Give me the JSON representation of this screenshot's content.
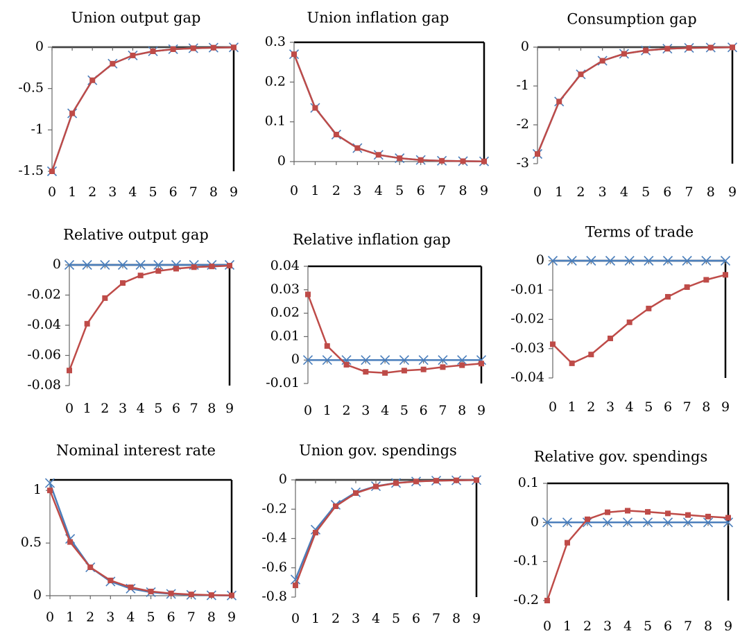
{
  "chart_data": [
    {
      "type": "line",
      "title": "Union output gap",
      "x": [
        0,
        1,
        2,
        3,
        4,
        5,
        6,
        7,
        8,
        9
      ],
      "ylim": [
        -1.5,
        0
      ],
      "yticks": [
        0,
        -0.5,
        -1,
        -1.5
      ],
      "ytick_labels": [
        "0",
        "-0.5",
        "-1",
        "-1.5"
      ],
      "series": [
        {
          "values": [
            -1.5,
            -0.8,
            -0.4,
            -0.2,
            -0.1,
            -0.05,
            -0.025,
            -0.013,
            -0.006,
            -0.003
          ]
        },
        {
          "values": [
            -1.5,
            -0.8,
            -0.4,
            -0.2,
            -0.1,
            -0.05,
            -0.025,
            -0.013,
            -0.006,
            -0.003
          ]
        }
      ]
    },
    {
      "type": "line",
      "title": "Union inflation gap",
      "x": [
        0,
        1,
        2,
        3,
        4,
        5,
        6,
        7,
        8,
        9
      ],
      "ylim": [
        0,
        0.3
      ],
      "yticks": [
        0.3,
        0.2,
        0.1,
        0
      ],
      "ytick_labels": [
        "0.3",
        "0.2",
        "0.1",
        "0"
      ],
      "series": [
        {
          "values": [
            0.27,
            0.135,
            0.068,
            0.034,
            0.017,
            0.0085,
            0.004,
            0.002,
            0.001,
            0.0005
          ]
        },
        {
          "values": [
            0.27,
            0.135,
            0.068,
            0.034,
            0.017,
            0.0085,
            0.004,
            0.002,
            0.001,
            0.0005
          ]
        }
      ]
    },
    {
      "type": "line",
      "title": "Consumption gap",
      "x": [
        0,
        1,
        2,
        3,
        4,
        5,
        6,
        7,
        8,
        9
      ],
      "ylim": [
        -3,
        0
      ],
      "yticks": [
        0,
        -1,
        -2,
        -3
      ],
      "ytick_labels": [
        "0",
        "-1",
        "-2",
        "-3"
      ],
      "series": [
        {
          "values": [
            -2.75,
            -1.4,
            -0.7,
            -0.35,
            -0.17,
            -0.085,
            -0.04,
            -0.02,
            -0.01,
            -0.005
          ]
        },
        {
          "values": [
            -2.75,
            -1.4,
            -0.7,
            -0.35,
            -0.17,
            -0.085,
            -0.04,
            -0.02,
            -0.01,
            -0.005
          ]
        }
      ]
    },
    {
      "type": "line",
      "title": "Relative output gap",
      "x": [
        0,
        1,
        2,
        3,
        4,
        5,
        6,
        7,
        8,
        9
      ],
      "ylim": [
        -0.08,
        0
      ],
      "yticks": [
        0,
        -0.02,
        -0.04,
        -0.06,
        -0.08
      ],
      "ytick_labels": [
        "0",
        "-0.02",
        "-0.04",
        "-0.06",
        "-0.08"
      ],
      "series": [
        {
          "values": [
            0,
            0,
            0,
            0,
            0,
            0,
            0,
            0,
            0,
            0
          ]
        },
        {
          "values": [
            -0.07,
            -0.039,
            -0.022,
            -0.012,
            -0.007,
            -0.004,
            -0.0025,
            -0.0015,
            -0.001,
            -0.0005
          ]
        }
      ]
    },
    {
      "type": "line",
      "title": "Relative inflation gap",
      "x": [
        0,
        1,
        2,
        3,
        4,
        5,
        6,
        7,
        8,
        9
      ],
      "ylim": [
        -0.01,
        0.04
      ],
      "yticks": [
        0.04,
        0.03,
        0.02,
        0.01,
        0,
        -0.01
      ],
      "ytick_labels": [
        "0.04",
        "0.03",
        "0.02",
        "0.01",
        "0",
        "-0.01"
      ],
      "series": [
        {
          "values": [
            0,
            0,
            0,
            0,
            0,
            0,
            0,
            0,
            0,
            0
          ]
        },
        {
          "values": [
            0.028,
            0.006,
            -0.002,
            -0.005,
            -0.0055,
            -0.0045,
            -0.004,
            -0.003,
            -0.0022,
            -0.0015
          ]
        }
      ]
    },
    {
      "type": "line",
      "title": "Terms of trade",
      "x": [
        0,
        1,
        2,
        3,
        4,
        5,
        6,
        7,
        8,
        9
      ],
      "ylim": [
        -0.04,
        0
      ],
      "yticks": [
        0,
        -0.01,
        -0.02,
        -0.03,
        -0.04
      ],
      "ytick_labels": [
        "0",
        "-0.01",
        "-0.02",
        "-0.03",
        "-0.04"
      ],
      "series": [
        {
          "values": [
            0,
            0,
            0,
            0,
            0,
            0,
            0,
            0,
            0,
            0
          ]
        },
        {
          "values": [
            -0.0285,
            -0.035,
            -0.032,
            -0.0265,
            -0.021,
            -0.0163,
            -0.0123,
            -0.009,
            -0.0065,
            -0.0048
          ]
        }
      ]
    },
    {
      "type": "line",
      "title": "Nominal interest rate",
      "x": [
        0,
        1,
        2,
        3,
        4,
        5,
        6,
        7,
        8,
        9
      ],
      "ylim": [
        0,
        1.1
      ],
      "yticks": [
        1,
        0.5,
        0
      ],
      "ytick_labels": [
        "1",
        "0.5",
        "0"
      ],
      "series": [
        {
          "values": [
            1.07,
            0.54,
            0.27,
            0.135,
            0.067,
            0.033,
            0.017,
            0.008,
            0.004,
            0.002
          ]
        },
        {
          "values": [
            1.0,
            0.51,
            0.27,
            0.145,
            0.08,
            0.04,
            0.022,
            0.012,
            0.006,
            0.003
          ]
        }
      ]
    },
    {
      "type": "line",
      "title": "Union gov. spendings",
      "x": [
        0,
        1,
        2,
        3,
        4,
        5,
        6,
        7,
        8,
        9
      ],
      "ylim": [
        -0.8,
        0
      ],
      "yticks": [
        0,
        -0.2,
        -0.4,
        -0.6,
        -0.8
      ],
      "ytick_labels": [
        "0",
        "-0.2",
        "-0.4",
        "-0.6",
        "-0.8"
      ],
      "series": [
        {
          "values": [
            -0.68,
            -0.34,
            -0.17,
            -0.085,
            -0.043,
            -0.021,
            -0.011,
            -0.005,
            -0.003,
            -0.0013
          ]
        },
        {
          "values": [
            -0.72,
            -0.36,
            -0.18,
            -0.09,
            -0.045,
            -0.022,
            -0.011,
            -0.0055,
            -0.003,
            -0.0014
          ]
        }
      ]
    },
    {
      "type": "line",
      "title": "Relative gov. spendings",
      "x": [
        0,
        1,
        2,
        3,
        4,
        5,
        6,
        7,
        8,
        9
      ],
      "ylim": [
        -0.2,
        0.1
      ],
      "yticks": [
        0.1,
        0,
        -0.1,
        -0.2
      ],
      "ytick_labels": [
        "0.1",
        "0",
        "-0.1",
        "-0.2"
      ],
      "series": [
        {
          "values": [
            0,
            0,
            0,
            0,
            0,
            0,
            0,
            0,
            0,
            0
          ]
        },
        {
          "values": [
            -0.2,
            -0.052,
            0.008,
            0.026,
            0.03,
            0.027,
            0.023,
            0.019,
            0.015,
            0.012
          ]
        }
      ]
    }
  ],
  "colors": {
    "series_1": "#4a7ebb",
    "series_2": "#be4b48",
    "axis": "#000000",
    "frame": "#000000"
  },
  "markers": {
    "series_1": "x-cross",
    "series_2": "square"
  }
}
